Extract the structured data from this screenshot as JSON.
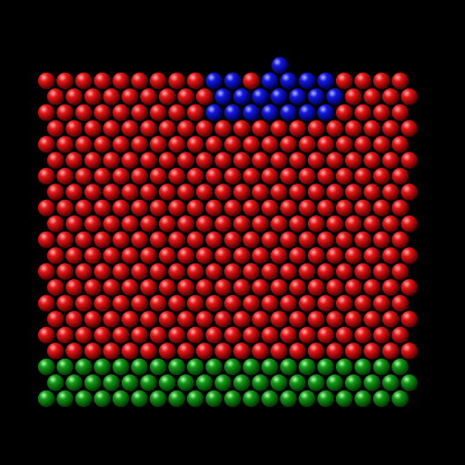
{
  "scene": {
    "background": "#000000",
    "palette": {
      "red": {
        "light": "#ffb3b3",
        "mid": "#e81515",
        "dark": "#5a0000"
      },
      "blue": {
        "light": "#b3b8ff",
        "mid": "#1218e0",
        "dark": "#000055"
      },
      "green": {
        "light": "#b8ffb3",
        "mid": "#129a16",
        "dark": "#003a00"
      }
    }
  },
  "layers": [
    {
      "name": "top-blue-island",
      "color": "blue",
      "shape": "cluster near top center"
    },
    {
      "name": "bulk-red-lattice",
      "color": "red",
      "shape": "large hexagonal-packed slab"
    },
    {
      "name": "bottom-green-base",
      "color": "green",
      "shape": "three rows at the bottom"
    }
  ]
}
